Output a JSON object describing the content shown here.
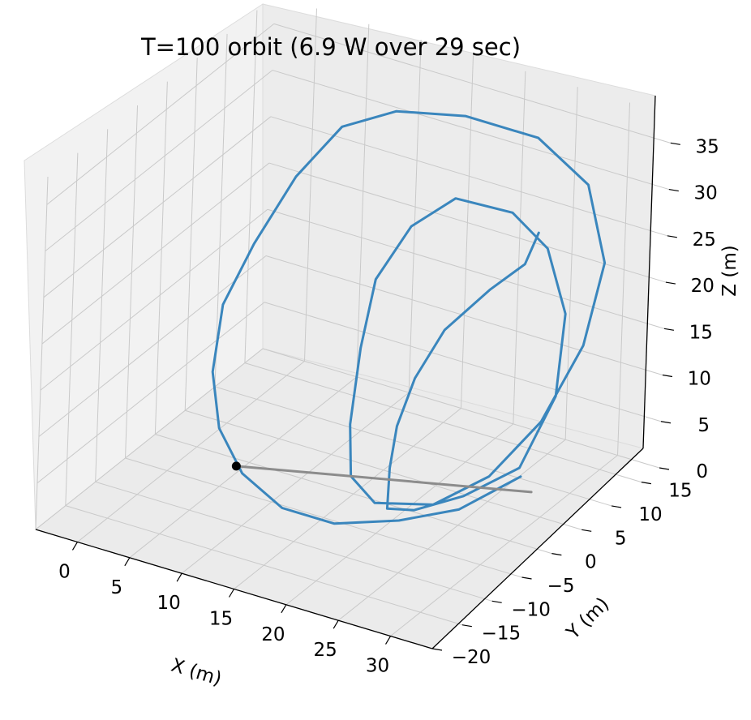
{
  "chart_data": {
    "type": "line",
    "projection": "3d",
    "title": "T=100 orbit (6.9 W over 29 sec)",
    "xlabel": "X (m)",
    "ylabel": "Y (m)",
    "zlabel": "Z (m)",
    "xlim": [
      -4,
      34
    ],
    "ylim": [
      -20,
      18
    ],
    "zlim": [
      0,
      38
    ],
    "xticks": [
      "0",
      "5",
      "10",
      "15",
      "20",
      "25",
      "30"
    ],
    "yticks": [
      "−20",
      "−15",
      "−10",
      "−5",
      "0",
      "5",
      "10",
      "15"
    ],
    "zticks": [
      "0",
      "5",
      "10",
      "15",
      "20",
      "25",
      "30",
      "35"
    ],
    "grid": true,
    "series": [
      {
        "role": "orbit path",
        "color": "#3a86bd",
        "points": [
          [
            24,
            14,
            24
          ],
          [
            25,
            10,
            23
          ],
          [
            24,
            6,
            22
          ],
          [
            22,
            2,
            19
          ],
          [
            21,
            -1,
            15
          ],
          [
            20,
            -2,
            10
          ],
          [
            20,
            -3,
            6
          ],
          [
            21,
            -5,
            3
          ],
          [
            23,
            -4,
            3
          ],
          [
            26,
            -1,
            4
          ],
          [
            29,
            3,
            6
          ],
          [
            30,
            7,
            12
          ],
          [
            29,
            10,
            19
          ],
          [
            26,
            12,
            24
          ],
          [
            22,
            13,
            26
          ],
          [
            16,
            14,
            25
          ],
          [
            13,
            12,
            22
          ],
          [
            12,
            8,
            18
          ],
          [
            13,
            4,
            13
          ],
          [
            15,
            -1,
            8
          ],
          [
            18,
            -6,
            6
          ],
          [
            22,
            -9,
            6
          ],
          [
            27,
            -8,
            7
          ],
          [
            30,
            -4,
            9
          ],
          [
            32,
            1,
            13
          ],
          [
            33,
            6,
            19
          ],
          [
            32,
            11,
            25
          ],
          [
            28,
            15,
            30
          ],
          [
            22,
            17,
            32
          ],
          [
            15,
            17,
            32
          ],
          [
            9,
            16,
            31
          ],
          [
            5,
            14,
            29
          ],
          [
            3,
            10,
            25
          ],
          [
            2,
            5,
            20
          ],
          [
            2,
            0,
            16
          ],
          [
            4,
            -5,
            12
          ],
          [
            7,
            -9,
            9
          ],
          [
            11,
            -12,
            7
          ],
          [
            16,
            -14,
            6
          ],
          [
            21,
            -14,
            6
          ],
          [
            26,
            -12,
            7
          ],
          [
            30,
            -9,
            8
          ],
          [
            33,
            -4,
            10
          ]
        ]
      },
      {
        "role": "start marker line",
        "color": "#8c8c8c",
        "points": [
          [
            6,
            -4,
            2
          ],
          [
            28,
            7,
            1
          ]
        ]
      }
    ],
    "marker": {
      "point": [
        6,
        -4,
        2
      ],
      "color": "#000000"
    }
  }
}
